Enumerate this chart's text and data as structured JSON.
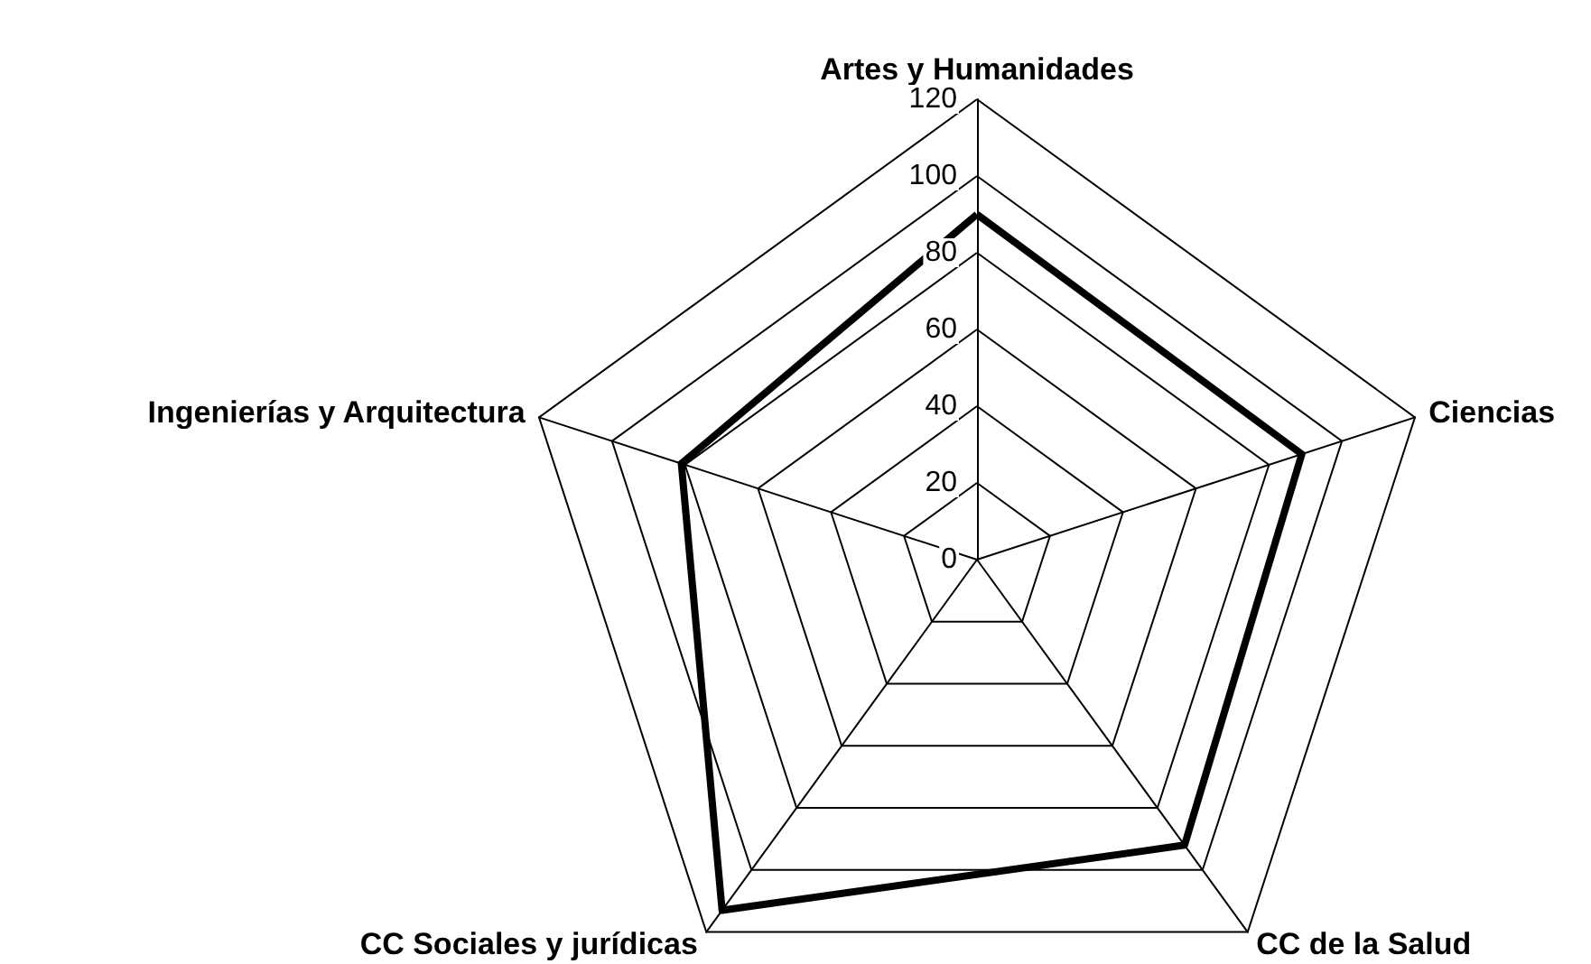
{
  "chart_data": {
    "type": "radar",
    "categories": [
      "Artes y Humanidades",
      "Ciencias",
      "CC de la Salud",
      "CC Sociales y jurídicas",
      "Ingenierías y Arquitectura"
    ],
    "series": [
      {
        "color": "#000000",
        "values": [
          90,
          89,
          92,
          113,
          81
        ]
      }
    ],
    "ylim": [
      0,
      120
    ],
    "yticks": [
      0,
      20,
      40,
      60,
      80,
      100,
      120
    ],
    "grid": true,
    "marker": "none"
  }
}
